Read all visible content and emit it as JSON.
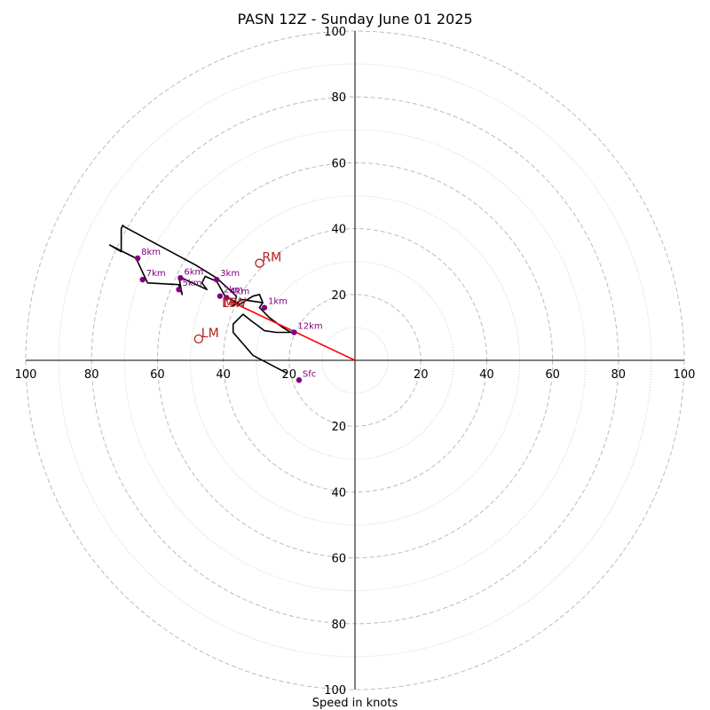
{
  "chart_data": {
    "type": "hodograph",
    "title": "PASN 12Z - Sunday June 01 2025",
    "xlabel": "Speed in knots",
    "range": [
      -100,
      100
    ],
    "rings": [
      20,
      40,
      60,
      80,
      100
    ],
    "minor_rings": [
      10,
      30,
      50,
      70,
      90
    ],
    "tick_labels": [
      {
        "label": "100",
        "value": -100
      },
      {
        "label": "80",
        "value": -80
      },
      {
        "label": "60",
        "value": -60
      },
      {
        "label": "40",
        "value": -40
      },
      {
        "label": "20",
        "value": -20
      },
      {
        "label": "20",
        "value": 20
      },
      {
        "label": "40",
        "value": 40
      },
      {
        "label": "60",
        "value": 60
      },
      {
        "label": "80",
        "value": 80
      },
      {
        "label": "100",
        "value": 100
      }
    ],
    "y_tick_labels": [
      {
        "label": "100",
        "value": 100
      },
      {
        "label": "80",
        "value": 80
      },
      {
        "label": "60",
        "value": 60
      },
      {
        "label": "40",
        "value": 40
      },
      {
        "label": "20",
        "value": 20
      },
      {
        "label": "20",
        "value": -20
      },
      {
        "label": "40",
        "value": -40
      },
      {
        "label": "60",
        "value": -60
      },
      {
        "label": "80",
        "value": -80
      },
      {
        "label": "100",
        "value": -100
      }
    ],
    "trace": [
      [
        -20.5,
        -4
      ],
      [
        -31,
        1.5
      ],
      [
        -37,
        8.5
      ],
      [
        -37,
        11
      ],
      [
        -34,
        14
      ],
      [
        -31.5,
        12
      ],
      [
        -29.5,
        10.5
      ],
      [
        -27.5,
        9
      ],
      [
        -24,
        8.5
      ],
      [
        -19.5,
        8.5
      ],
      [
        -22,
        10
      ],
      [
        -26,
        13
      ],
      [
        -29,
        16
      ],
      [
        -28,
        17.5
      ],
      [
        -29,
        20
      ],
      [
        -31,
        19.5
      ],
      [
        -35,
        17
      ],
      [
        -39.5,
        19.5
      ],
      [
        -42,
        24
      ],
      [
        -45.5,
        25.5
      ],
      [
        -46.5,
        23.5
      ],
      [
        -45,
        21.5
      ],
      [
        -51.5,
        24.5
      ],
      [
        -53.5,
        25.5
      ],
      [
        -52.5,
        20
      ],
      [
        -53.5,
        23
      ],
      [
        -63,
        23.5
      ],
      [
        -66.5,
        31
      ],
      [
        -74.5,
        35
      ],
      [
        -71,
        33
      ],
      [
        -71,
        40
      ],
      [
        -70.5,
        41
      ],
      [
        -70,
        40.5
      ],
      [
        -48.5,
        29
      ],
      [
        -42,
        25
      ],
      [
        -36,
        19.5
      ],
      [
        -36.5,
        17.5
      ],
      [
        -37,
        16.5
      ],
      [
        -34.5,
        18.5
      ],
      [
        -28,
        17.5
      ]
    ],
    "height_markers": [
      {
        "label": "Sfc",
        "u": -17,
        "v": -6
      },
      {
        "label": "1km",
        "u": -27.5,
        "v": 16
      },
      {
        "label": "2km",
        "u": -41,
        "v": 19.5
      },
      {
        "label": "3km",
        "u": -42,
        "v": 24.5
      },
      {
        "label": "4km",
        "u": -39,
        "v": 19
      },
      {
        "label": "5km",
        "u": -53.5,
        "v": 21.5
      },
      {
        "label": "6km",
        "u": -53,
        "v": 25
      },
      {
        "label": "7km",
        "u": -64.5,
        "v": 24.5
      },
      {
        "label": "8km",
        "u": -66,
        "v": 31
      },
      {
        "label": "12km",
        "u": -18.5,
        "v": 8.5
      }
    ],
    "storm_motion": [
      {
        "label": "RM",
        "u": -29,
        "v": 29.5
      },
      {
        "label": "LM",
        "u": -47.5,
        "v": 6.5
      },
      {
        "label": "MW",
        "u": -36.5,
        "v": 17.5
      },
      {
        "label": "LT",
        "u": -38.5,
        "v": 17.5
      }
    ],
    "shear_vector": {
      "from": [
        0,
        0
      ],
      "to": [
        -38,
        18
      ]
    },
    "colors": {
      "trace": "#000000",
      "marker": "#800080",
      "marker_text": "#800080",
      "storm_motion": "#b22222",
      "shear_vector": "#ff0000",
      "major_ring": "#bbbbbb",
      "minor_ring": "#cccccc"
    }
  }
}
